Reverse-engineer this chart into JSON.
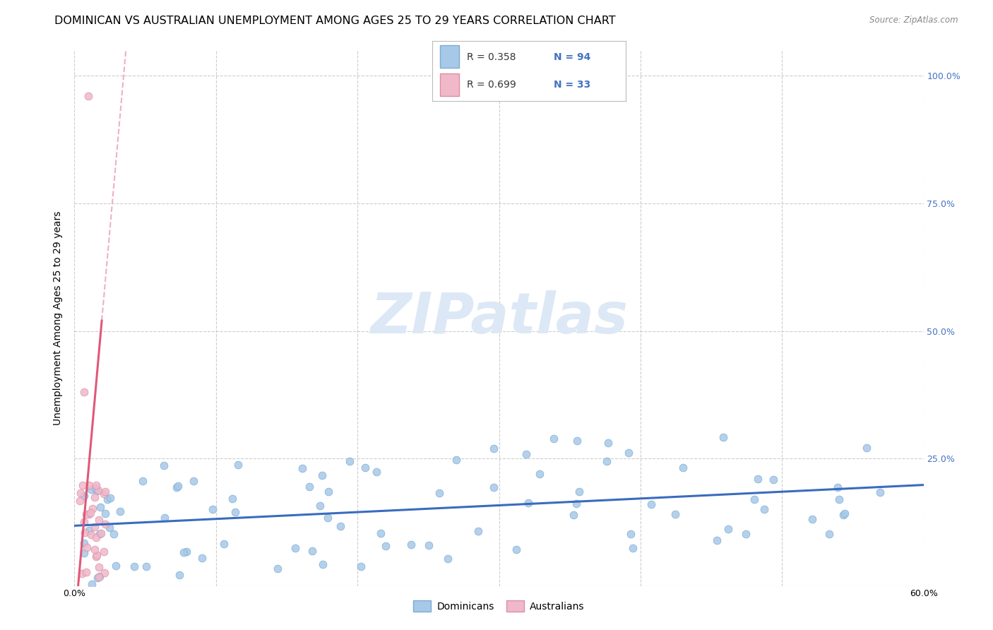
{
  "title": "DOMINICAN VS AUSTRALIAN UNEMPLOYMENT AMONG AGES 25 TO 29 YEARS CORRELATION CHART",
  "source": "Source: ZipAtlas.com",
  "ylabel": "Unemployment Among Ages 25 to 29 years",
  "xlim": [
    0.0,
    0.6
  ],
  "ylim": [
    0.0,
    1.05
  ],
  "background_color": "#ffffff",
  "grid_color": "#cccccc",
  "dominican_color": "#a8c8e8",
  "dominican_edge_color": "#7aadd4",
  "australian_color": "#f0b8c8",
  "australian_edge_color": "#d890a8",
  "dominican_line_color": "#3a6bbf",
  "australian_line_color": "#e05878",
  "australian_dash_color": "#f0b0c0",
  "watermark_color": "#dce8f5",
  "label_color": "#4472c4",
  "title_fontsize": 11.5,
  "axis_label_fontsize": 10,
  "tick_fontsize": 9,
  "ytick_positions": [
    0.0,
    0.25,
    0.5,
    0.75,
    1.0
  ],
  "ytick_labels_right": [
    "",
    "25.0%",
    "50.0%",
    "75.0%",
    "100.0%"
  ],
  "xtick_vals": [
    0.0,
    0.1,
    0.2,
    0.3,
    0.4,
    0.5,
    0.6
  ],
  "xtick_labels": [
    "0.0%",
    "",
    "",
    "",
    "",
    "",
    "60.0%"
  ]
}
